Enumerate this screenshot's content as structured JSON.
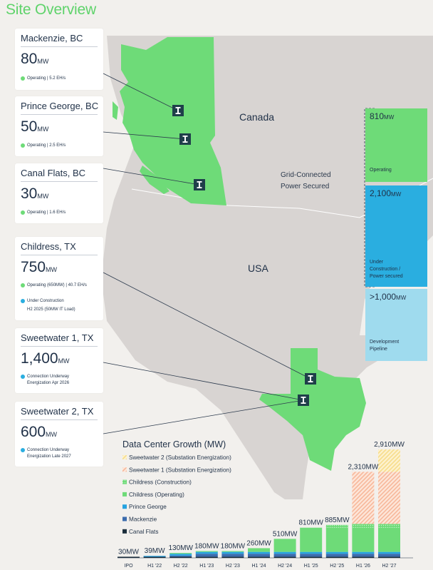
{
  "title": "Site Overview",
  "map_labels": {
    "canada": "Canada",
    "usa": "USA"
  },
  "colors": {
    "operating": "#6edb78",
    "under_construction": "#2aaee0",
    "development": "#9fdbee",
    "navy": "#1f3f4a",
    "background": "#f2f0ed",
    "landmass": "#d8d4d2"
  },
  "site_marker_icon": "iren-site-marker-icon",
  "sites": [
    {
      "name": "Mackenzie, BC",
      "capacity": "80",
      "unit": "MW",
      "status": [
        {
          "color": "#6edb78",
          "lines": [
            "Operating | 5.2 EH/s"
          ]
        }
      ]
    },
    {
      "name": "Prince George, BC",
      "capacity": "50",
      "unit": "MW",
      "status": [
        {
          "color": "#6edb78",
          "lines": [
            "Operating | 2.5 EH/s"
          ]
        }
      ]
    },
    {
      "name": "Canal Flats, BC",
      "capacity": "30",
      "unit": "MW",
      "status": [
        {
          "color": "#6edb78",
          "lines": [
            "Operating | 1.6 EH/s"
          ]
        }
      ]
    },
    {
      "name": "Childress, TX",
      "capacity": "750",
      "unit": "MW",
      "status": [
        {
          "color": "#6edb78",
          "lines": [
            "Operating (650MW) | 40.7 EH/s"
          ]
        },
        {
          "color": "#2aaee0",
          "lines": [
            "Under Construction",
            "H2 2025 (50MW IT Load)"
          ]
        }
      ]
    },
    {
      "name": "Sweetwater 1, TX",
      "capacity": "1,400",
      "unit": "MW",
      "status": [
        {
          "color": "#2aaee0",
          "lines": [
            "Connection Underway",
            "Energization Apr 2026"
          ]
        }
      ]
    },
    {
      "name": "Sweetwater 2, TX",
      "capacity": "600",
      "unit": "MW",
      "status": [
        {
          "color": "#2aaee0",
          "lines": [
            "Connection Underway",
            "Energization Late 2027"
          ]
        }
      ]
    }
  ],
  "pipeline": {
    "bracket_label": [
      "Grid-Connected",
      "Power Secured"
    ],
    "segments": [
      {
        "value": "810",
        "unit": "MW",
        "label": [
          "Operating"
        ],
        "color": "#6edb78"
      },
      {
        "value": "2,100",
        "unit": "MW",
        "label": [
          "Under",
          "Construction /",
          "Power secured"
        ],
        "color": "#2aaee0"
      },
      {
        "value": ">1,000",
        "unit": "MW",
        "label": [
          "Development",
          "Pipeline"
        ],
        "color": "#9fdbee"
      }
    ]
  },
  "chart_data": {
    "type": "bar",
    "stacked": true,
    "title": "Data Center Growth (MW)",
    "xlabel": "",
    "ylabel": "",
    "legend_position": "top-left",
    "categories": [
      "IPO",
      "H1 '22",
      "H2 '22",
      "H1 '23",
      "H2 '23",
      "H1 '24",
      "H2 '24",
      "H1 '25",
      "H2 '25",
      "H1 '26",
      "H2 '27"
    ],
    "totals": [
      "30MW",
      "39MW",
      "130MW",
      "180MW",
      "180MW",
      "260MW",
      "510MW",
      "810MW",
      "885MW",
      "2,310MW",
      "2,910MW"
    ],
    "series": [
      {
        "name": "Canal Flats",
        "color": "#1b2e3c",
        "pattern": "solid",
        "values": [
          30,
          30,
          30,
          30,
          30,
          30,
          30,
          30,
          30,
          30,
          30
        ]
      },
      {
        "name": "Mackenzie",
        "color": "#3c6cad",
        "pattern": "solid",
        "values": [
          0,
          0,
          30,
          80,
          80,
          80,
          80,
          80,
          80,
          80,
          80
        ]
      },
      {
        "name": "Prince George",
        "color": "#27a3e0",
        "pattern": "solid",
        "values": [
          0,
          9,
          50,
          50,
          50,
          50,
          50,
          50,
          50,
          50,
          50
        ]
      },
      {
        "name": "Childress (Operating)",
        "color": "#6edb78",
        "pattern": "solid",
        "values": [
          0,
          0,
          20,
          20,
          20,
          100,
          350,
          650,
          650,
          650,
          650
        ]
      },
      {
        "name": "Childress (Construction)",
        "color": "#6edb78",
        "pattern": "dots",
        "values": [
          0,
          0,
          0,
          0,
          0,
          0,
          0,
          0,
          75,
          100,
          100
        ]
      },
      {
        "name": "Sweetwater 1 (Substation Energization)",
        "color": "#f7b79a",
        "pattern": "hatch",
        "values": [
          0,
          0,
          0,
          0,
          0,
          0,
          0,
          0,
          0,
          1400,
          1400
        ]
      },
      {
        "name": "Sweetwater 2 (Substation Energization)",
        "color": "#f7dc8a",
        "pattern": "hatch",
        "values": [
          0,
          0,
          0,
          0,
          0,
          0,
          0,
          0,
          0,
          0,
          600
        ]
      }
    ],
    "ylim": [
      0,
      2910
    ]
  }
}
